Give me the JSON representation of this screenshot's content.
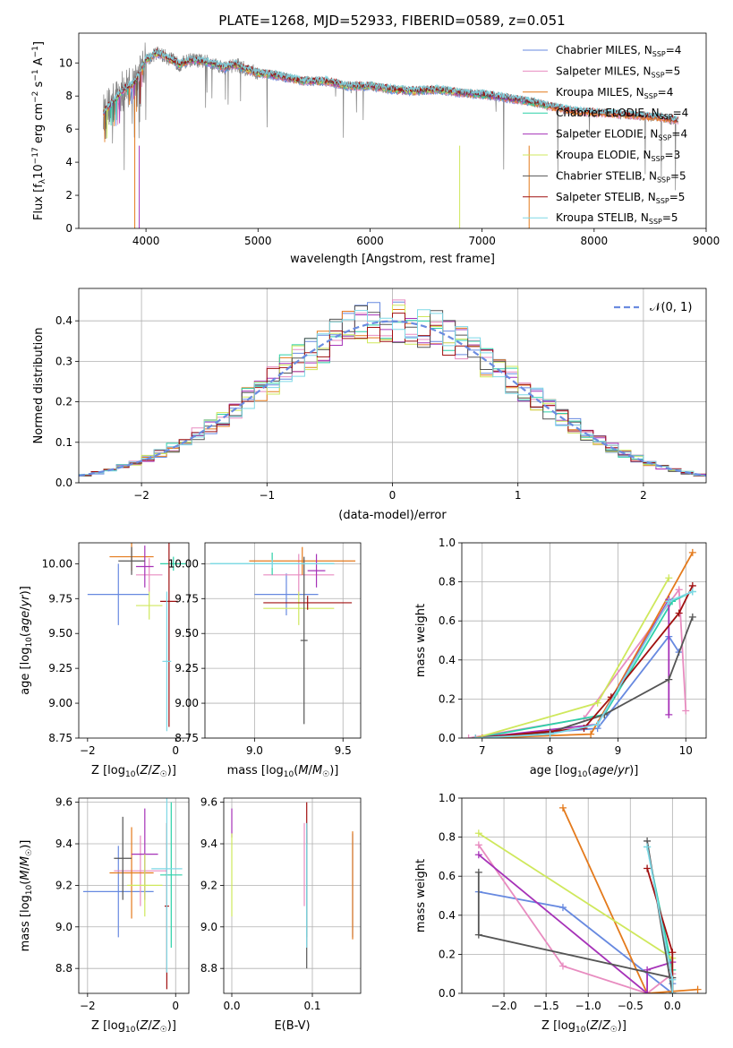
{
  "figure": {
    "title": "PLATE=1268, MJD=52933, FIBERID=0589, z=0.051"
  },
  "panel_spectrum": {
    "xlabel": "wavelength [Angstrom, rest frame]",
    "ylabel": "Flux [f_λ 10^-17 erg cm^-2 s^-1 A^-1]"
  },
  "panel_residuals": {
    "xlabel": "(data-model)/error",
    "ylabel": "Normed distribution",
    "gauss_label": "𝒩(0, 1)"
  },
  "panel_labels": {
    "age_ylabel": "age  [log10(age/yr)]",
    "mass_ylabel": "mass [log10(M/M☉)]",
    "mass_xlabel": "mass [log10(M/M☉)]",
    "z_xlabel": "Z [log10(Z/Z☉)]",
    "ebv_xlabel": "E(B-V)",
    "massweight_ylabel": "mass weight",
    "age_xlabel": "age  [log10(age/yr)]"
  },
  "models": [
    {
      "name": "Chabrier MILES",
      "nssp": "4",
      "color": "#6789e0"
    },
    {
      "name": "Salpeter MILES",
      "nssp": "5",
      "color": "#e88cc0"
    },
    {
      "name": "Kroupa MILES",
      "nssp": "4",
      "color": "#e47a1c"
    },
    {
      "name": "Chabrier ELODIE",
      "nssp": "4",
      "color": "#2cd0a8"
    },
    {
      "name": "Salpeter ELODIE",
      "nssp": "4",
      "color": "#a632b8"
    },
    {
      "name": "Kroupa ELODIE",
      "nssp": "3",
      "color": "#cfe85c"
    },
    {
      "name": "Chabrier STELIB",
      "nssp": "5",
      "color": "#555555"
    },
    {
      "name": "Salpeter STELIB",
      "nssp": "5",
      "color": "#a01010"
    },
    {
      "name": "Kroupa STELIB",
      "nssp": "5",
      "color": "#7ed8e6"
    }
  ],
  "chart_data": [
    {
      "id": "spectrum",
      "type": "line",
      "title": "PLATE=1268, MJD=52933, FIBERID=0589, z=0.051",
      "xlabel": "wavelength [Angstrom, rest frame]",
      "ylabel": "Flux [f_λ 10^-17 erg cm^-2 s^-1 A^-1]",
      "xlim": [
        3400,
        9000
      ],
      "ylim": [
        0,
        11.8
      ],
      "xticks": [
        4000,
        5000,
        6000,
        7000,
        8000,
        9000
      ],
      "yticks": [
        0,
        2,
        4,
        6,
        8,
        10
      ],
      "continuum": {
        "x": [
          3620,
          3700,
          3800,
          3900,
          4000,
          4100,
          4200,
          4300,
          4400,
          4500,
          4600,
          4700,
          4800,
          4900,
          5000,
          5200,
          5400,
          5600,
          5800,
          6000,
          6200,
          6400,
          6600,
          6800,
          7000,
          7200,
          7400,
          7600,
          7800,
          8000,
          8200,
          8400,
          8600,
          8750
        ],
        "y": [
          7.0,
          7.6,
          8.4,
          8.8,
          10.2,
          10.6,
          10.3,
          9.9,
          10.2,
          10.1,
          10.0,
          9.7,
          9.9,
          9.6,
          9.4,
          9.2,
          8.9,
          8.9,
          8.6,
          8.6,
          8.4,
          8.3,
          8.4,
          8.2,
          8.1,
          7.9,
          7.7,
          7.4,
          7.1,
          7.0,
          6.9,
          6.8,
          6.7,
          6.5
        ]
      },
      "grid": false,
      "legend": "right"
    },
    {
      "id": "residuals",
      "type": "histogram",
      "xlabel": "(data-model)/error",
      "ylabel": "Normed distribution",
      "xlim": [
        -2.5,
        2.5
      ],
      "ylim": [
        0,
        0.48
      ],
      "xticks": [
        -2,
        -1,
        0,
        1,
        2
      ],
      "yticks": [
        0.0,
        0.1,
        0.2,
        0.3,
        0.4
      ],
      "bin_width": 0.1,
      "bin_start": -2.5,
      "grid": true,
      "legend": "top-right"
    },
    {
      "id": "age_vs_z",
      "type": "scatter",
      "xlabel": "Z [log10(Z/Z☉)]",
      "ylabel": "age  [log10(age/yr)]",
      "xlim": [
        -2.2,
        0.3
      ],
      "ylim": [
        8.75,
        10.15
      ],
      "xticks": [
        -2,
        0
      ],
      "yticks": [
        8.75,
        9.0,
        9.25,
        9.5,
        9.75,
        10.0
      ],
      "points": [
        {
          "model": 0,
          "x": -1.3,
          "xerr": 0.7,
          "y": 9.78,
          "yerr": 0.22
        },
        {
          "model": 1,
          "x": -0.6,
          "xerr": 0.3,
          "y": 9.92,
          "yerr": 0.12
        },
        {
          "model": 2,
          "x": -1.0,
          "xerr": 0.5,
          "y": 10.05,
          "yerr": 0.1
        },
        {
          "model": 3,
          "x": -0.05,
          "xerr": 0.3,
          "y": 10.0,
          "yerr": 0.05
        },
        {
          "model": 4,
          "x": -0.7,
          "xerr": 0.2,
          "y": 9.98,
          "yerr": 0.15
        },
        {
          "model": 5,
          "x": -0.6,
          "xerr": 0.3,
          "y": 9.7,
          "yerr": 0.1
        },
        {
          "model": 6,
          "x": -1.0,
          "xerr": 0.3,
          "y": 10.02,
          "yerr": 0.1
        },
        {
          "model": 7,
          "x": -0.15,
          "xerr": 0.2,
          "y": 9.73,
          "yerr": 0.9
        },
        {
          "model": 8,
          "x": -0.2,
          "xerr": 0.1,
          "y": 9.3,
          "yerr": 0.5
        }
      ]
    },
    {
      "id": "age_vs_mass",
      "type": "scatter",
      "xlabel": "mass [log10(M/M☉)]",
      "ylabel": "",
      "xlim": [
        8.72,
        9.6
      ],
      "ylim": [
        8.75,
        10.15
      ],
      "xticks": [
        9.0,
        9.5
      ],
      "yticks": [
        8.75,
        9.0,
        9.25,
        9.5,
        9.75,
        10.0
      ],
      "points": [
        {
          "model": 0,
          "x": 9.18,
          "xerr": 0.18,
          "y": 9.78,
          "yerr": 0.15
        },
        {
          "model": 1,
          "x": 9.25,
          "xerr": 0.2,
          "y": 9.92,
          "yerr": 0.15
        },
        {
          "model": 2,
          "x": 9.27,
          "xerr": 0.3,
          "y": 10.02,
          "yerr": 0.1
        },
        {
          "model": 3,
          "x": 9.1,
          "xerr": 0.35,
          "y": 10.0,
          "yerr": 0.08
        },
        {
          "model": 4,
          "x": 9.35,
          "xerr": 0.05,
          "y": 9.95,
          "yerr": 0.12
        },
        {
          "model": 5,
          "x": 9.25,
          "xerr": 0.2,
          "y": 9.68,
          "yerr": 0.12
        },
        {
          "model": 6,
          "x": 9.28,
          "xerr": 0.02,
          "y": 9.45,
          "yerr": 0.6
        },
        {
          "model": 7,
          "x": 9.3,
          "xerr": 0.25,
          "y": 9.72,
          "yerr": 0.05
        },
        {
          "model": 8,
          "x": 9.1,
          "xerr": 0.35,
          "y": 10.0,
          "yerr": 0.03
        }
      ]
    },
    {
      "id": "massweight_vs_age",
      "type": "line",
      "xlabel": "age  [log10(age/yr)]",
      "ylabel": "mass weight",
      "xlim": [
        6.7,
        10.3
      ],
      "ylim": [
        0,
        1.0
      ],
      "xticks": [
        7,
        8,
        9,
        10
      ],
      "yticks": [
        0.0,
        0.2,
        0.4,
        0.6,
        0.8,
        1.0
      ],
      "series": [
        {
          "model": 0,
          "x": [
            6.9,
            8.7,
            9.75,
            9.9
          ],
          "y": [
            0.0,
            0.05,
            0.52,
            0.44
          ]
        },
        {
          "model": 1,
          "x": [
            6.8,
            8.5,
            9.9,
            10.0
          ],
          "y": [
            0.0,
            0.1,
            0.76,
            0.14
          ]
        },
        {
          "model": 2,
          "x": [
            7.0,
            8.6,
            8.9,
            10.1
          ],
          "y": [
            0.0,
            0.02,
            0.2,
            0.95
          ]
        },
        {
          "model": 3,
          "x": [
            6.9,
            8.8,
            9.8,
            10.1
          ],
          "y": [
            0.0,
            0.12,
            0.7,
            0.75
          ]
        },
        {
          "model": 4,
          "x": [
            6.9,
            8.7,
            9.75,
            9.75
          ],
          "y": [
            0.0,
            0.07,
            0.71,
            0.12
          ]
        },
        {
          "model": 5,
          "x": [
            6.9,
            8.7,
            9.75
          ],
          "y": [
            0.0,
            0.18,
            0.82
          ]
        },
        {
          "model": 6,
          "x": [
            6.9,
            8.0,
            8.8,
            9.75,
            10.1
          ],
          "y": [
            0.0,
            0.03,
            0.12,
            0.3,
            0.62
          ]
        },
        {
          "model": 7,
          "x": [
            6.9,
            8.5,
            8.9,
            9.9,
            10.1
          ],
          "y": [
            0.0,
            0.05,
            0.21,
            0.64,
            0.78
          ]
        },
        {
          "model": 8,
          "x": [
            6.9,
            8.0,
            8.7,
            9.75,
            10.1
          ],
          "y": [
            0.0,
            0.02,
            0.07,
            0.7,
            0.75
          ]
        }
      ]
    },
    {
      "id": "mass_vs_z",
      "type": "scatter",
      "xlabel": "Z [log10(Z/Z☉)]",
      "ylabel": "mass [log10(M/M☉)]",
      "xlim": [
        -2.2,
        0.3
      ],
      "ylim": [
        8.68,
        9.62
      ],
      "xticks": [
        -2,
        0
      ],
      "yticks": [
        8.8,
        9.0,
        9.2,
        9.4,
        9.6
      ],
      "points": [
        {
          "model": 0,
          "x": -1.3,
          "xerr": 0.8,
          "y": 9.17,
          "yerr": 0.22
        },
        {
          "model": 1,
          "x": -0.8,
          "xerr": 0.6,
          "y": 9.27,
          "yerr": 0.17
        },
        {
          "model": 2,
          "x": -1.0,
          "xerr": 0.5,
          "y": 9.26,
          "yerr": 0.22
        },
        {
          "model": 3,
          "x": -0.1,
          "xerr": 0.25,
          "y": 9.25,
          "yerr": 0.35
        },
        {
          "model": 4,
          "x": -0.7,
          "xerr": 0.3,
          "y": 9.35,
          "yerr": 0.22
        },
        {
          "model": 5,
          "x": -0.7,
          "xerr": 0.4,
          "y": 9.2,
          "yerr": 0.15
        },
        {
          "model": 6,
          "x": -1.2,
          "xerr": 0.2,
          "y": 9.33,
          "yerr": 0.2
        },
        {
          "model": 7,
          "x": -0.2,
          "xerr": 0.05,
          "y": 9.1,
          "yerr": 0.4
        },
        {
          "model": 8,
          "x": -0.2,
          "xerr": 0.35,
          "y": 9.28,
          "yerr": 0.5
        }
      ]
    },
    {
      "id": "mass_vs_ebv",
      "type": "scatter",
      "xlabel": "E(B-V)",
      "ylabel": "",
      "xlim": [
        -0.01,
        0.16
      ],
      "ylim": [
        8.68,
        9.62
      ],
      "xticks": [
        0.0,
        0.1
      ],
      "yticks": [
        8.8,
        9.0,
        9.2,
        9.4,
        9.6
      ],
      "points": [
        {
          "model": 0,
          "x": 0.15,
          "xerr": 0,
          "y": 9.2,
          "yerr": 0.25
        },
        {
          "model": 1,
          "x": 0.09,
          "xerr": 0,
          "y": 9.3,
          "yerr": 0.2
        },
        {
          "model": 2,
          "x": 0.15,
          "xerr": 0,
          "y": 9.2,
          "yerr": 0.26
        },
        {
          "model": 3,
          "x": 0.093,
          "xerr": 0,
          "y": 9.2,
          "yerr": 0.25
        },
        {
          "model": 4,
          "x": 0.0,
          "xerr": 0,
          "y": 9.5,
          "yerr": 0.07
        },
        {
          "model": 5,
          "x": 0.0,
          "xerr": 0,
          "y": 9.25,
          "yerr": 0.2
        },
        {
          "model": 6,
          "x": 0.093,
          "xerr": 0,
          "y": 9.15,
          "yerr": 0.35
        },
        {
          "model": 7,
          "x": 0.093,
          "xerr": 0,
          "y": 9.5,
          "yerr": 0.1
        },
        {
          "model": 8,
          "x": 0.093,
          "xerr": 0,
          "y": 9.2,
          "yerr": 0.3
        }
      ]
    },
    {
      "id": "massweight_vs_z",
      "type": "line",
      "xlabel": "Z [log10(Z/Z☉)]",
      "ylabel": "mass weight",
      "xlim": [
        -2.5,
        0.4
      ],
      "ylim": [
        0,
        1.0
      ],
      "xticks": [
        -2.0,
        -1.5,
        -1.0,
        -0.5,
        0.0
      ],
      "yticks": [
        0.0,
        0.2,
        0.4,
        0.6,
        0.8,
        1.0
      ],
      "series": [
        {
          "model": 0,
          "x": [
            -2.3,
            -1.3,
            0.0,
            0.0
          ],
          "y": [
            0.52,
            0.44,
            0.0,
            0.05
          ]
        },
        {
          "model": 1,
          "x": [
            -2.3,
            -1.3,
            -0.3,
            0.0
          ],
          "y": [
            0.76,
            0.14,
            0.0,
            0.1
          ]
        },
        {
          "model": 2,
          "x": [
            -1.3,
            -0.3,
            0.3
          ],
          "y": [
            0.95,
            0.0,
            0.02
          ]
        },
        {
          "model": 3,
          "x": [
            -0.3,
            0.0,
            0.0
          ],
          "y": [
            0.75,
            0.12,
            0.0
          ]
        },
        {
          "model": 4,
          "x": [
            -2.3,
            -0.3,
            -0.3,
            0.0
          ],
          "y": [
            0.71,
            0.0,
            0.12,
            0.16
          ]
        },
        {
          "model": 5,
          "x": [
            -2.3,
            0.0,
            0.0
          ],
          "y": [
            0.82,
            0.18,
            0.0
          ]
        },
        {
          "model": 6,
          "x": [
            -2.3,
            -2.3,
            0.0,
            0.0,
            -0.3
          ],
          "y": [
            0.62,
            0.3,
            0.08,
            0.0,
            0.78
          ]
        },
        {
          "model": 7,
          "x": [
            -0.3,
            0.0,
            0.0
          ],
          "y": [
            0.64,
            0.21,
            0.0
          ]
        },
        {
          "model": 8,
          "x": [
            -0.3,
            0.0,
            0.0
          ],
          "y": [
            0.75,
            0.07,
            0.0
          ]
        }
      ]
    }
  ]
}
